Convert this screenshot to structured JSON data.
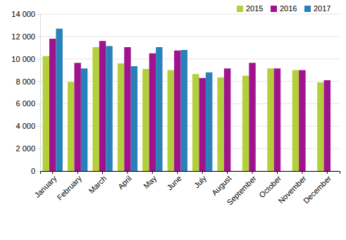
{
  "chart_data": {
    "type": "bar",
    "categories": [
      "January",
      "February",
      "March",
      "April",
      "May",
      "June",
      "July",
      "August",
      "September",
      "October",
      "November",
      "December"
    ],
    "series": [
      {
        "name": "2015",
        "color": "#b3cf3b",
        "values": [
          10250,
          7950,
          11050,
          9600,
          9100,
          9000,
          8650,
          8350,
          8500,
          9150,
          9000,
          7900
        ]
      },
      {
        "name": "2016",
        "color": "#a0138e",
        "values": [
          11800,
          9650,
          11600,
          11050,
          10500,
          10750,
          8300,
          9150,
          9650,
          9150,
          9000,
          8100
        ]
      },
      {
        "name": "2017",
        "color": "#2a80b9",
        "values": [
          12700,
          9150,
          11150,
          9350,
          11050,
          10800,
          8800,
          null,
          null,
          null,
          null,
          null
        ]
      }
    ],
    "ylim": [
      0,
      14000
    ],
    "yticks": [
      0,
      {
        "value": 2000,
        "label": "2 000"
      },
      {
        "value": 4000,
        "label": "4 000"
      },
      {
        "value": 6000,
        "label": "6 000"
      },
      {
        "value": 8000,
        "label": "8 000"
      },
      {
        "value": 10000,
        "label": "10 000"
      },
      {
        "value": 12000,
        "label": "12 000"
      },
      {
        "value": 14000,
        "label": "14 000"
      }
    ],
    "grid": true,
    "legend": "top-right"
  }
}
